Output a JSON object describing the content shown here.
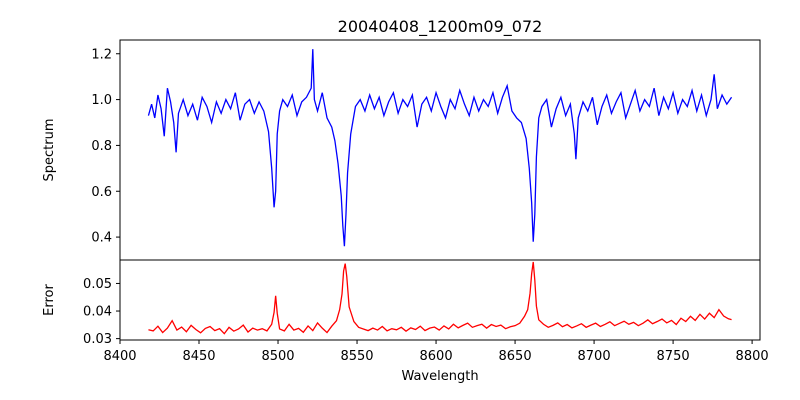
{
  "chart_data": [
    {
      "type": "line",
      "panel": "top",
      "title": "20040408_1200m09_072",
      "ylabel": "Spectrum",
      "xlim": [
        8400,
        8805
      ],
      "ylim": [
        0.3,
        1.26
      ],
      "yticks": [
        0.4,
        0.6,
        0.8,
        1.0,
        1.2
      ],
      "yticklabels": [
        "0.4",
        "0.6",
        "0.8",
        "1.0",
        "1.2"
      ],
      "grid": false,
      "series": [
        {
          "color": "#0000ff",
          "x": [
            8418,
            8420,
            8422,
            8424,
            8426,
            8428,
            8430,
            8432,
            8434,
            8435.5,
            8437,
            8440,
            8443,
            8446,
            8449,
            8452,
            8455,
            8458,
            8461,
            8464,
            8467,
            8470,
            8473,
            8476,
            8479,
            8482,
            8485,
            8488,
            8491,
            8494,
            8496,
            8497.5,
            8498.5,
            8499.5,
            8501,
            8503,
            8506,
            8509,
            8512,
            8515,
            8518,
            8521,
            8522,
            8523,
            8525,
            8528,
            8531,
            8534,
            8536,
            8538,
            8540,
            8541,
            8542,
            8543,
            8544,
            8546,
            8549,
            8552,
            8555,
            8558,
            8561,
            8564,
            8567,
            8570,
            8573,
            8576,
            8579,
            8582,
            8585,
            8588,
            8591,
            8594,
            8597,
            8600,
            8603,
            8606,
            8609,
            8612,
            8615,
            8618,
            8621,
            8624,
            8627,
            8630,
            8633,
            8636,
            8639,
            8642,
            8645,
            8648,
            8651,
            8654,
            8657,
            8659,
            8660.5,
            8661.5,
            8662.5,
            8663.5,
            8665,
            8667,
            8670,
            8673,
            8676,
            8679,
            8682,
            8685,
            8687.5,
            8688.5,
            8690,
            8693,
            8696,
            8699,
            8702,
            8705,
            8708,
            8711,
            8714,
            8717,
            8720,
            8723,
            8726,
            8729,
            8732,
            8735,
            8738,
            8741,
            8744,
            8747,
            8750,
            8753,
            8756,
            8759,
            8762,
            8765,
            8768,
            8771,
            8774,
            8776,
            8778,
            8781,
            8784,
            8787
          ],
          "y": [
            0.93,
            0.98,
            0.92,
            1.02,
            0.96,
            0.84,
            1.05,
            0.99,
            0.9,
            0.77,
            0.94,
            1.0,
            0.93,
            0.98,
            0.91,
            1.01,
            0.97,
            0.9,
            0.99,
            0.94,
            1.0,
            0.96,
            1.03,
            0.91,
            0.98,
            1.0,
            0.94,
            0.99,
            0.95,
            0.86,
            0.7,
            0.53,
            0.6,
            0.85,
            0.95,
            1.0,
            0.97,
            1.02,
            0.93,
            0.99,
            1.01,
            1.05,
            1.22,
            1.0,
            0.95,
            1.03,
            0.92,
            0.88,
            0.82,
            0.72,
            0.58,
            0.45,
            0.36,
            0.5,
            0.68,
            0.85,
            0.97,
            1.0,
            0.95,
            1.02,
            0.96,
            1.01,
            0.93,
            0.99,
            1.03,
            0.94,
            1.0,
            0.97,
            1.02,
            0.88,
            0.98,
            1.01,
            0.95,
            1.03,
            0.97,
            0.92,
            1.0,
            0.96,
            1.04,
            0.98,
            0.93,
            1.01,
            0.95,
            1.0,
            0.97,
            1.03,
            0.94,
            1.01,
            1.06,
            0.95,
            0.92,
            0.9,
            0.83,
            0.7,
            0.55,
            0.38,
            0.5,
            0.75,
            0.92,
            0.97,
            1.0,
            0.88,
            0.96,
            1.01,
            0.93,
            0.98,
            0.85,
            0.74,
            0.92,
            0.99,
            0.95,
            1.01,
            0.89,
            0.97,
            1.02,
            0.94,
            0.99,
            1.03,
            0.92,
            0.98,
            1.04,
            0.95,
            1.0,
            0.97,
            1.05,
            0.93,
            1.01,
            0.96,
            1.03,
            0.94,
            1.0,
            0.97,
            1.04,
            0.95,
            1.02,
            0.93,
            1.0,
            1.11,
            0.96,
            1.02,
            0.98,
            1.01
          ]
        }
      ]
    },
    {
      "type": "line",
      "panel": "bottom",
      "xlabel": "Wavelength",
      "ylabel": "Error",
      "xlim": [
        8400,
        8805
      ],
      "ylim": [
        0.0295,
        0.0585
      ],
      "xticks": [
        8400,
        8450,
        8500,
        8550,
        8600,
        8650,
        8700,
        8750,
        8800
      ],
      "xticklabels": [
        "8400",
        "8450",
        "8500",
        "8550",
        "8600",
        "8650",
        "8700",
        "8750",
        "8800"
      ],
      "yticks": [
        0.03,
        0.04,
        0.05
      ],
      "yticklabels": [
        "0.03",
        "0.04",
        "0.05"
      ],
      "grid": false,
      "series": [
        {
          "color": "#ff0000",
          "x": [
            8418,
            8421,
            8424,
            8427,
            8430,
            8433,
            8436,
            8439,
            8442,
            8445,
            8448,
            8451,
            8454,
            8457,
            8460,
            8463,
            8466,
            8469,
            8472,
            8475,
            8478,
            8481,
            8484,
            8487,
            8490,
            8493,
            8496,
            8497.5,
            8498.5,
            8499.5,
            8501,
            8504,
            8507,
            8510,
            8513,
            8516,
            8519,
            8522,
            8525,
            8528,
            8531,
            8534,
            8537,
            8539,
            8540.5,
            8541.5,
            8542.5,
            8543.5,
            8545,
            8548,
            8551,
            8554,
            8557,
            8560,
            8563,
            8566,
            8569,
            8572,
            8575,
            8578,
            8581,
            8584,
            8587,
            8590,
            8593,
            8596,
            8599,
            8602,
            8605,
            8608,
            8611,
            8614,
            8617,
            8620,
            8623,
            8626,
            8629,
            8632,
            8635,
            8638,
            8641,
            8644,
            8647,
            8650,
            8653,
            8656,
            8658,
            8659.5,
            8660.5,
            8661.5,
            8662.5,
            8663.5,
            8665,
            8668,
            8671,
            8674,
            8677,
            8680,
            8683,
            8686,
            8689,
            8692,
            8695,
            8698,
            8701,
            8704,
            8707,
            8710,
            8713,
            8716,
            8719,
            8722,
            8725,
            8728,
            8731,
            8734,
            8737,
            8740,
            8743,
            8746,
            8749,
            8752,
            8755,
            8758,
            8761,
            8764,
            8767,
            8770,
            8773,
            8776,
            8779,
            8782,
            8785,
            8787
          ],
          "y": [
            0.0332,
            0.0328,
            0.0345,
            0.0322,
            0.0338,
            0.0365,
            0.0331,
            0.0342,
            0.0325,
            0.0348,
            0.0333,
            0.0321,
            0.0337,
            0.0344,
            0.0329,
            0.0336,
            0.0318,
            0.0341,
            0.0327,
            0.0335,
            0.0349,
            0.0324,
            0.0338,
            0.0331,
            0.0336,
            0.0328,
            0.0352,
            0.0395,
            0.0455,
            0.0392,
            0.0335,
            0.0328,
            0.0352,
            0.0331,
            0.0337,
            0.0323,
            0.0346,
            0.0329,
            0.0357,
            0.0338,
            0.0322,
            0.0345,
            0.0365,
            0.0405,
            0.0462,
            0.0545,
            0.0572,
            0.0525,
            0.0415,
            0.0362,
            0.0341,
            0.0335,
            0.0329,
            0.0338,
            0.0331,
            0.0344,
            0.0328,
            0.0336,
            0.0332,
            0.0341,
            0.0327,
            0.0339,
            0.0333,
            0.0345,
            0.0329,
            0.0338,
            0.0342,
            0.0331,
            0.0346,
            0.0335,
            0.0352,
            0.0339,
            0.0348,
            0.0356,
            0.0341,
            0.0347,
            0.0352,
            0.0338,
            0.0351,
            0.0344,
            0.0349,
            0.0336,
            0.0343,
            0.0347,
            0.0356,
            0.0381,
            0.0405,
            0.0465,
            0.0535,
            0.0578,
            0.0512,
            0.0418,
            0.0368,
            0.0352,
            0.0341,
            0.0348,
            0.0357,
            0.0343,
            0.0351,
            0.0339,
            0.0346,
            0.0354,
            0.0341,
            0.0349,
            0.0356,
            0.0344,
            0.0352,
            0.0361,
            0.0347,
            0.0355,
            0.0363,
            0.0352,
            0.0359,
            0.0347,
            0.0356,
            0.0368,
            0.0354,
            0.0362,
            0.0371,
            0.0357,
            0.0366,
            0.0351,
            0.0374,
            0.0362,
            0.0381,
            0.0366,
            0.0388,
            0.0371,
            0.0392,
            0.0376,
            0.0405,
            0.0382,
            0.0372,
            0.0369
          ]
        }
      ]
    }
  ]
}
